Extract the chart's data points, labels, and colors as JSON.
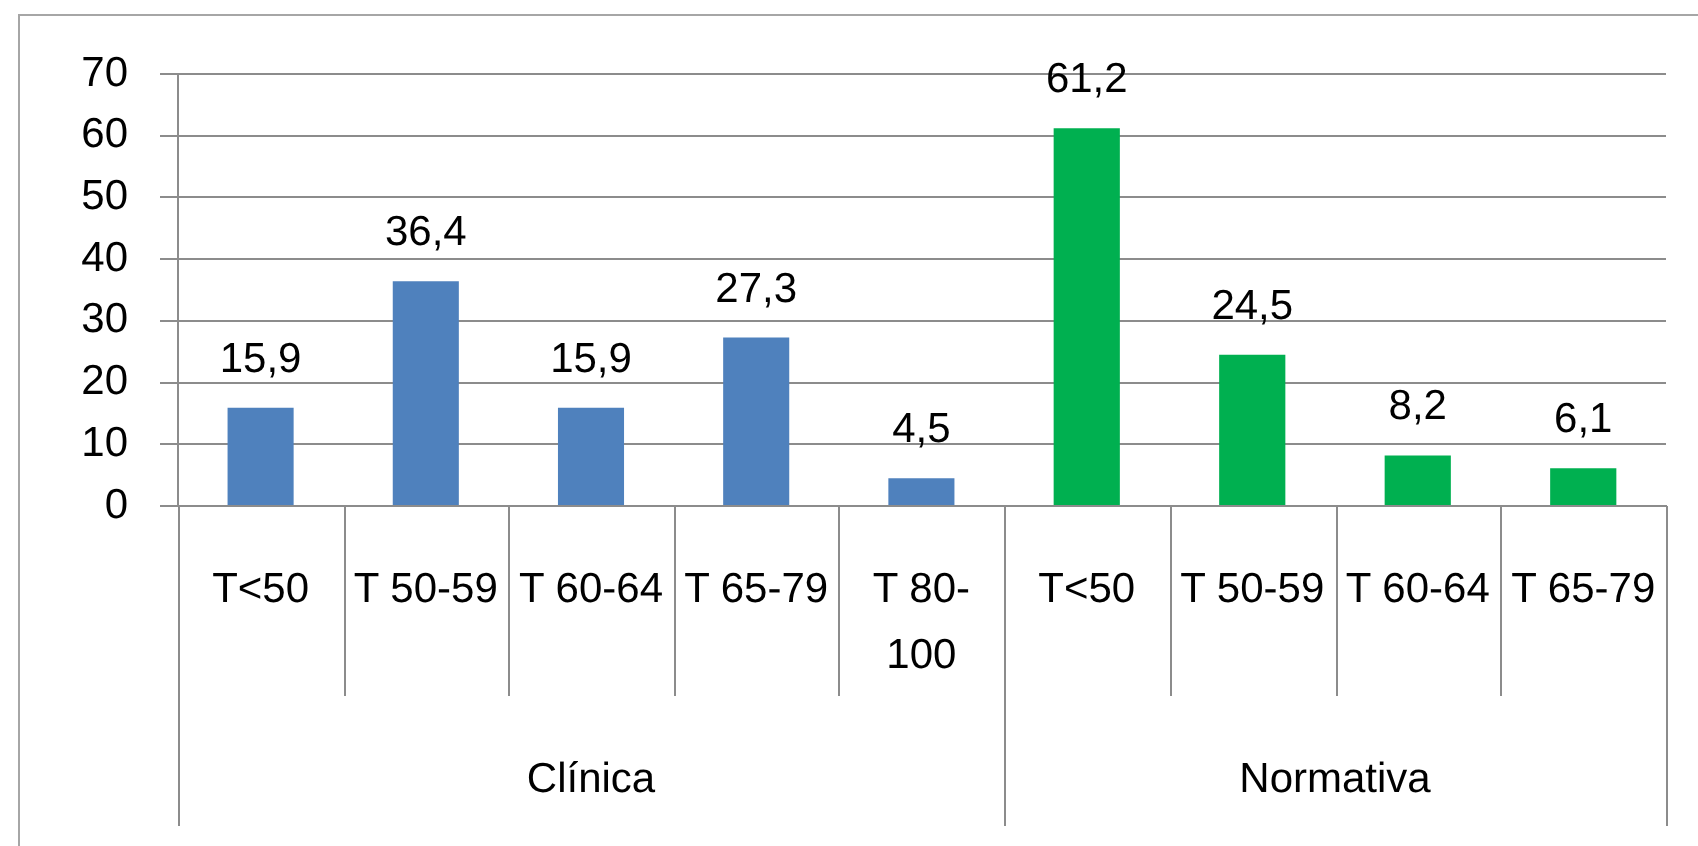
{
  "chart_data": [
    {
      "type": "bar",
      "xlabel": "Clínica",
      "categories": [
        "T<50",
        "T 50-59",
        "T 60-64",
        "T 65-79",
        "T 80-100"
      ],
      "values": [
        15.9,
        36.4,
        15.9,
        27.3,
        4.5
      ],
      "color": "#4f81bd",
      "value_labels": [
        "15,9",
        "36,4",
        "15,9",
        "27,3",
        "4,5"
      ],
      "ylim": [
        0,
        70
      ],
      "yticks": [
        0,
        10,
        20,
        30,
        40,
        50,
        60,
        70
      ],
      "grid": "y"
    },
    {
      "type": "bar",
      "xlabel": "Normativa",
      "categories": [
        "T<50",
        "T 50-59",
        "T 60-64",
        "T 65-79"
      ],
      "values": [
        61.2,
        24.5,
        8.2,
        6.1
      ],
      "color": "#00b050",
      "value_labels": [
        "61,2",
        "24,5",
        "8,2",
        "6,1"
      ],
      "ylim": [
        0,
        70
      ],
      "yticks": [
        0,
        10,
        20,
        30,
        40,
        50,
        60,
        70
      ],
      "grid": "y",
      "tick_labels": "x"
    }
  ]
}
